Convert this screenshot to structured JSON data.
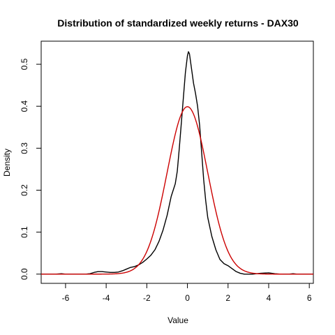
{
  "chart_data": {
    "type": "line",
    "title": "Distribution of standardized weekly returns - DAX30",
    "xlabel": "Value",
    "ylabel": "Density",
    "xlim": [
      -7.2,
      6.2
    ],
    "ylim": [
      -0.022,
      0.555
    ],
    "x_ticks": [
      -6,
      -4,
      -2,
      0,
      2,
      4,
      6
    ],
    "y_ticks": [
      0.0,
      0.1,
      0.2,
      0.3,
      0.4,
      0.5
    ],
    "x_tick_labels": [
      "-6",
      "-4",
      "-2",
      "0",
      "2",
      "4",
      "6"
    ],
    "y_tick_labels": [
      "0.0",
      "0.1",
      "0.2",
      "0.3",
      "0.4",
      "0.5"
    ],
    "grid": false,
    "legend": "none",
    "series": [
      {
        "color": "#000000",
        "points": [
          [
            -7.2,
            0.0
          ],
          [
            -6.5,
            0.0
          ],
          [
            -6.2,
            0.001
          ],
          [
            -6.0,
            0.0
          ],
          [
            -5.0,
            0.0
          ],
          [
            -4.8,
            0.001
          ],
          [
            -4.6,
            0.004
          ],
          [
            -4.4,
            0.006
          ],
          [
            -4.2,
            0.006
          ],
          [
            -4.0,
            0.005
          ],
          [
            -3.8,
            0.004
          ],
          [
            -3.6,
            0.004
          ],
          [
            -3.4,
            0.005
          ],
          [
            -3.2,
            0.008
          ],
          [
            -3.0,
            0.012
          ],
          [
            -2.8,
            0.016
          ],
          [
            -2.6,
            0.018
          ],
          [
            -2.4,
            0.022
          ],
          [
            -2.2,
            0.028
          ],
          [
            -2.0,
            0.036
          ],
          [
            -1.8,
            0.045
          ],
          [
            -1.6,
            0.058
          ],
          [
            -1.4,
            0.078
          ],
          [
            -1.2,
            0.105
          ],
          [
            -1.0,
            0.14
          ],
          [
            -0.8,
            0.185
          ],
          [
            -0.6,
            0.215
          ],
          [
            -0.5,
            0.245
          ],
          [
            -0.4,
            0.3
          ],
          [
            -0.3,
            0.36
          ],
          [
            -0.2,
            0.42
          ],
          [
            -0.1,
            0.48
          ],
          [
            0.0,
            0.52
          ],
          [
            0.05,
            0.53
          ],
          [
            0.1,
            0.525
          ],
          [
            0.2,
            0.49
          ],
          [
            0.3,
            0.455
          ],
          [
            0.4,
            0.43
          ],
          [
            0.5,
            0.4
          ],
          [
            0.6,
            0.355
          ],
          [
            0.7,
            0.29
          ],
          [
            0.8,
            0.225
          ],
          [
            0.9,
            0.175
          ],
          [
            1.0,
            0.135
          ],
          [
            1.2,
            0.09
          ],
          [
            1.4,
            0.058
          ],
          [
            1.6,
            0.035
          ],
          [
            1.8,
            0.025
          ],
          [
            2.0,
            0.02
          ],
          [
            2.2,
            0.013
          ],
          [
            2.4,
            0.006
          ],
          [
            2.6,
            0.002
          ],
          [
            2.8,
            0.0
          ],
          [
            3.2,
            0.0
          ],
          [
            3.6,
            0.002
          ],
          [
            4.0,
            0.003
          ],
          [
            4.3,
            0.001
          ],
          [
            4.6,
            0.0
          ],
          [
            5.0,
            0.0
          ],
          [
            5.2,
            0.001
          ],
          [
            5.4,
            0.0
          ],
          [
            6.2,
            0.0
          ]
        ]
      },
      {
        "color": "#cc0000",
        "function": "standard-normal-density",
        "mean": 0,
        "sd": 1
      }
    ]
  }
}
